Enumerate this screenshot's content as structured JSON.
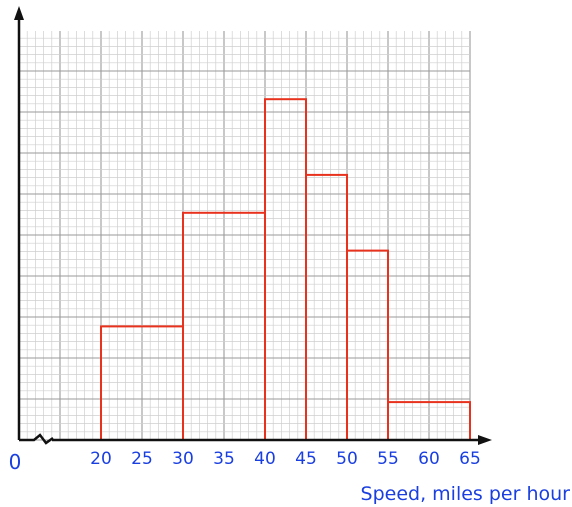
{
  "chart_data": {
    "type": "histogram",
    "title": "",
    "xlabel": "Speed, miles per hour",
    "ylabel": "",
    "origin_label": "0",
    "x_axis_break": true,
    "xlim": [
      20,
      65
    ],
    "x_ticks": [
      20,
      25,
      30,
      35,
      40,
      45,
      50,
      55,
      60,
      65
    ],
    "ylim": [
      0,
      5.4
    ],
    "y_tick_labels_shown": false,
    "grid": true,
    "bins": [
      {
        "from": 20,
        "to": 30,
        "height": 1.5
      },
      {
        "from": 30,
        "to": 40,
        "height": 3.0
      },
      {
        "from": 40,
        "to": 45,
        "height": 4.5
      },
      {
        "from": 45,
        "to": 50,
        "height": 3.5
      },
      {
        "from": 50,
        "to": 55,
        "height": 2.5
      },
      {
        "from": 55,
        "to": 65,
        "height": 0.5
      }
    ],
    "colors": {
      "bars": "#e8321e",
      "labels": "#1a3fe0",
      "axes": "#111111",
      "grid_minor": "#cfcfcf",
      "grid_major": "#9a9a9a"
    }
  }
}
